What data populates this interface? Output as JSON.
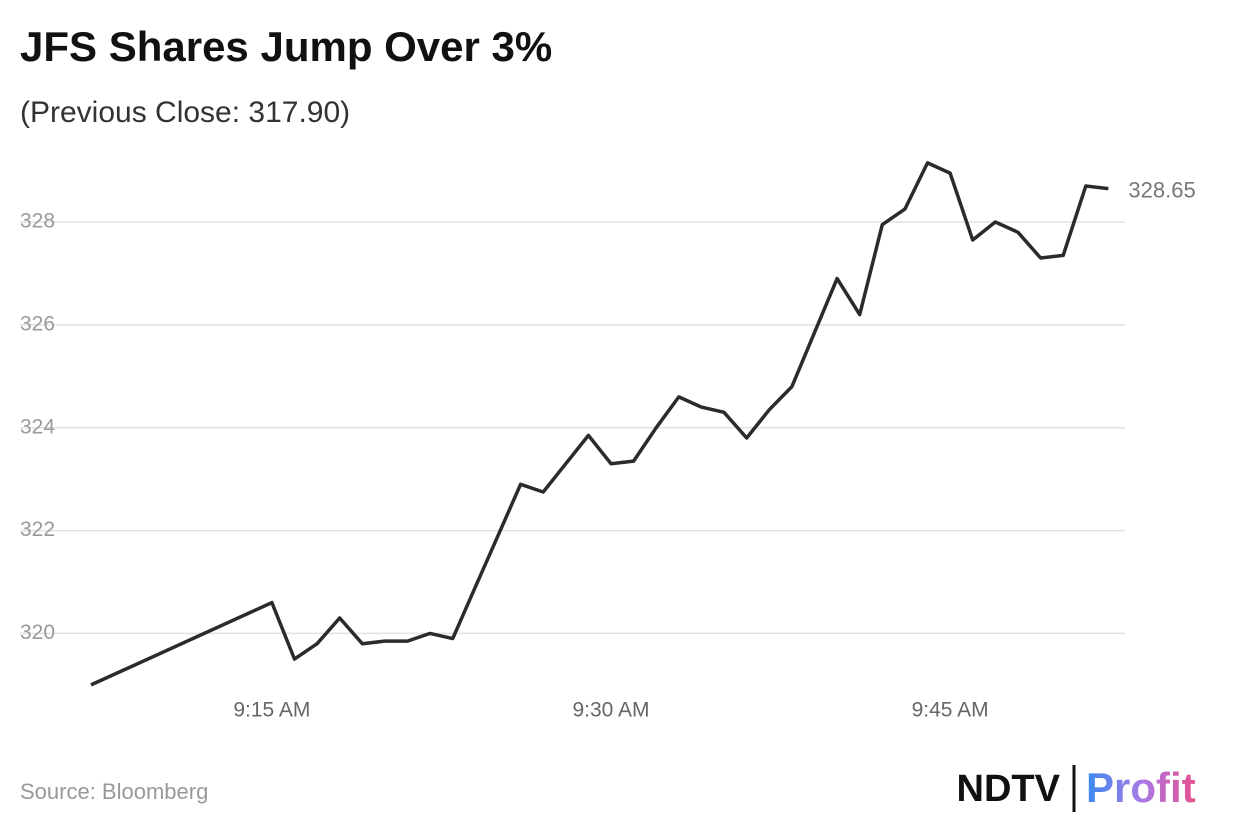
{
  "chart_data": {
    "type": "line",
    "title": "JFS Shares Jump Over 3%",
    "subtitle": "(Previous Close: 317.90)",
    "source": "Source: Bloomberg",
    "logo": {
      "primary": "NDTV",
      "secondary": "Profit"
    },
    "x": [
      "9:07 AM",
      "9:15 AM",
      "9:16 AM",
      "9:17 AM",
      "9:18 AM",
      "9:19 AM",
      "9:20 AM",
      "9:21 AM",
      "9:22 AM",
      "9:23 AM",
      "9:24 AM",
      "9:25 AM",
      "9:26 AM",
      "9:27 AM",
      "9:28 AM",
      "9:29 AM",
      "9:30 AM",
      "9:31 AM",
      "9:32 AM",
      "9:33 AM",
      "9:34 AM",
      "9:35 AM",
      "9:36 AM",
      "9:37 AM",
      "9:38 AM",
      "9:39 AM",
      "9:40 AM",
      "9:41 AM",
      "9:42 AM",
      "9:43 AM",
      "9:44 AM",
      "9:45 AM",
      "9:46 AM",
      "9:47 AM",
      "9:48 AM",
      "9:49 AM",
      "9:50 AM",
      "9:51 AM",
      "9:52 AM"
    ],
    "series": [
      {
        "name": "JFS",
        "color": "#2b2b2e",
        "values": [
          319.0,
          320.6,
          319.5,
          319.8,
          320.3,
          319.8,
          319.85,
          319.85,
          320.0,
          319.9,
          320.9,
          321.9,
          322.9,
          322.75,
          323.3,
          323.85,
          323.3,
          323.35,
          324.0,
          324.6,
          324.4,
          324.3,
          323.8,
          324.35,
          324.8,
          325.85,
          326.9,
          326.2,
          327.95,
          328.25,
          329.15,
          328.95,
          327.65,
          328.0,
          327.8,
          327.3,
          327.35,
          328.7,
          328.65
        ]
      }
    ],
    "xlim": [
      "9:07 AM",
      "9:53 AM"
    ],
    "xticks": [
      "9:15 AM",
      "9:30 AM",
      "9:45 AM"
    ],
    "ylim": [
      318.9,
      329.4
    ],
    "yticks": [
      320,
      322,
      324,
      326,
      328
    ],
    "grid": true
  }
}
